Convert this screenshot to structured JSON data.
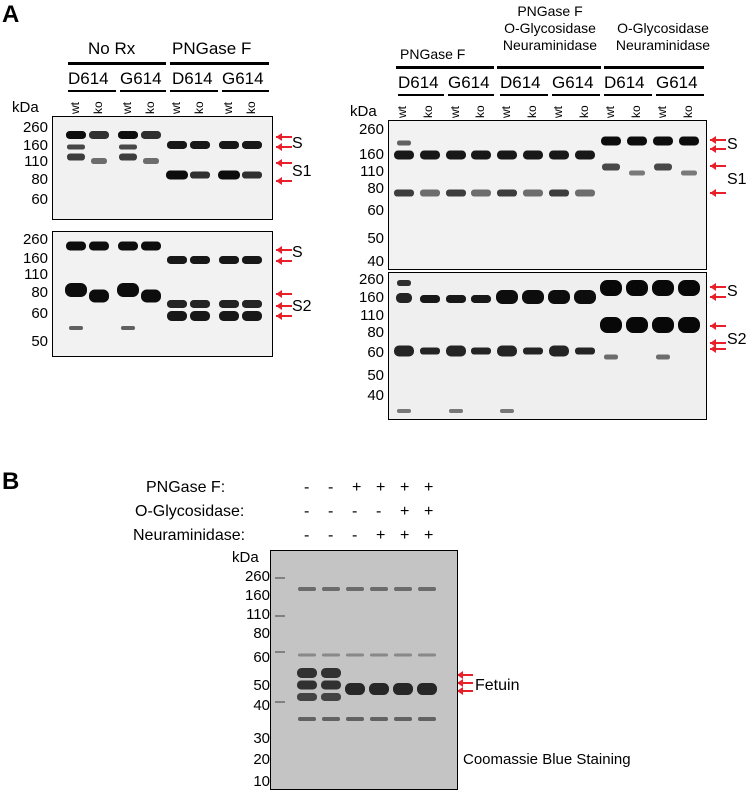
{
  "panel_a": {
    "label": "A",
    "left": {
      "groups": [
        {
          "name": "No Rx",
          "subs": [
            "D614",
            "G614"
          ]
        },
        {
          "name": "PNGase F",
          "subs": [
            "D614",
            "G614"
          ]
        }
      ],
      "lane_labels": [
        "wt",
        "ko",
        "wt",
        "ko",
        "wt",
        "ko",
        "wt",
        "ko"
      ],
      "kda_label": "kDa",
      "top_blot": {
        "markers": [
          "260",
          "160",
          "110",
          "80",
          "60"
        ],
        "bands": [
          "S",
          "S1"
        ]
      },
      "bottom_blot": {
        "markers": [
          "260",
          "160",
          "110",
          "80",
          "60",
          "50"
        ],
        "bands": [
          "S",
          "S2"
        ]
      }
    },
    "right": {
      "groups": [
        {
          "name": "PNGase F",
          "subs": [
            "D614",
            "G614"
          ]
        },
        {
          "name_lines": [
            "PNGase F",
            "O-Glycosidase",
            "Neuraminidase"
          ],
          "subs": [
            "D614",
            "G614"
          ]
        },
        {
          "name_lines": [
            "O-Glycosidase",
            "Neuraminidase"
          ],
          "subs": [
            "D614",
            "G614"
          ]
        }
      ],
      "lane_labels": [
        "wt",
        "ko",
        "wt",
        "ko",
        "wt",
        "ko",
        "wt",
        "ko",
        "wt",
        "ko",
        "wt",
        "ko"
      ],
      "kda_label": "kDa",
      "top_blot": {
        "markers": [
          "260",
          "160",
          "110",
          "80",
          "60",
          "50",
          "40"
        ],
        "bands": [
          "S",
          "S1"
        ]
      },
      "bottom_blot": {
        "markers": [
          "260",
          "160",
          "110",
          "80",
          "60",
          "50",
          "40"
        ],
        "bands": [
          "S",
          "S2"
        ]
      }
    }
  },
  "panel_b": {
    "label": "B",
    "conditions": [
      {
        "name": "PNGase F:",
        "signs": [
          "-",
          "-",
          "+",
          "+",
          "+",
          "+"
        ]
      },
      {
        "name": "O-Glycosidase:",
        "signs": [
          "-",
          "-",
          "-",
          "-",
          "+",
          "+"
        ]
      },
      {
        "name": "Neuraminidase:",
        "signs": [
          "-",
          "-",
          "-",
          "+",
          "+",
          "+"
        ]
      }
    ],
    "kda_label": "kDa",
    "markers": [
      "260",
      "160",
      "110",
      "80",
      "60",
      "50",
      "40",
      "30",
      "20",
      "10"
    ],
    "band_label": "Fetuin",
    "caption": "Coomassie Blue Staining"
  },
  "colors": {
    "arrow": "#e8202a",
    "background": "#ffffff",
    "text": "#000000"
  }
}
